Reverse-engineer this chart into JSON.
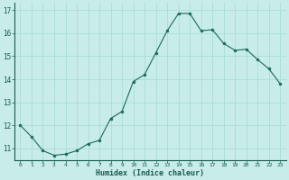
{
  "x": [
    0,
    1,
    2,
    3,
    4,
    5,
    6,
    7,
    8,
    9,
    10,
    11,
    12,
    13,
    14,
    15,
    16,
    17,
    18,
    19,
    20,
    21,
    22,
    23
  ],
  "y": [
    12.0,
    11.5,
    10.9,
    10.7,
    10.75,
    10.9,
    11.2,
    11.35,
    12.3,
    12.6,
    13.9,
    14.2,
    15.15,
    16.1,
    16.85,
    16.85,
    16.1,
    16.15,
    15.55,
    15.25,
    15.3,
    14.85,
    14.45,
    13.8
  ],
  "xlabel": "Humidex (Indice chaleur)",
  "bg_color": "#c8ece8",
  "grid_color": "#aaddda",
  "line_color": "#1a6b5a",
  "marker_color": "#1a6b5a",
  "xlim": [
    -0.5,
    23.5
  ],
  "ylim": [
    10.5,
    17.3
  ],
  "yticks": [
    11,
    12,
    13,
    14,
    15,
    16,
    17
  ],
  "xticks": [
    0,
    1,
    2,
    3,
    4,
    5,
    6,
    7,
    8,
    9,
    10,
    11,
    12,
    13,
    14,
    15,
    16,
    17,
    18,
    19,
    20,
    21,
    22,
    23
  ]
}
